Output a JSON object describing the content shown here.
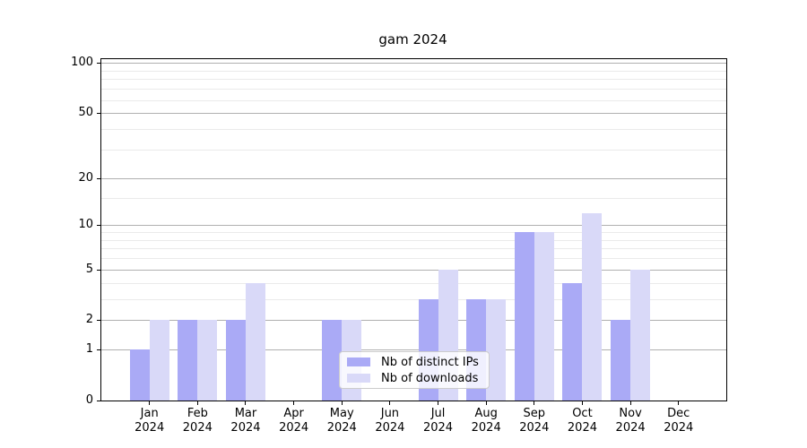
{
  "chart_data": {
    "type": "bar",
    "title": "gam 2024",
    "categories": [
      "Jan",
      "Feb",
      "Mar",
      "Apr",
      "May",
      "Jun",
      "Jul",
      "Aug",
      "Sep",
      "Oct",
      "Nov",
      "Dec"
    ],
    "category_year": "2024",
    "series": [
      {
        "name": "Nb of distinct IPs",
        "color": "#aaaaf6",
        "values": [
          1,
          2,
          2,
          0,
          2,
          0,
          3,
          3,
          9,
          4,
          2,
          0
        ]
      },
      {
        "name": "Nb of downloads",
        "color": "#d9d9f8",
        "values": [
          2,
          2,
          4,
          0,
          2,
          0,
          5,
          3,
          9,
          12,
          5,
          0
        ]
      }
    ],
    "y_axis": {
      "scale": "log1p",
      "major_ticks": [
        0,
        1,
        2,
        5,
        10,
        20,
        50,
        100
      ],
      "minor_ticks": [
        3,
        4,
        6,
        7,
        8,
        9,
        15,
        30,
        40,
        60,
        70,
        80,
        90
      ],
      "top_value": 105.6
    },
    "x_axis": {
      "label_lines": 2
    },
    "legend": {
      "position": "lower-center"
    },
    "grid": true
  },
  "colors": {
    "major_grid": "#b0b0b0",
    "minor_grid": "#eaeaea",
    "spine": "#000000",
    "background": "#ffffff"
  }
}
